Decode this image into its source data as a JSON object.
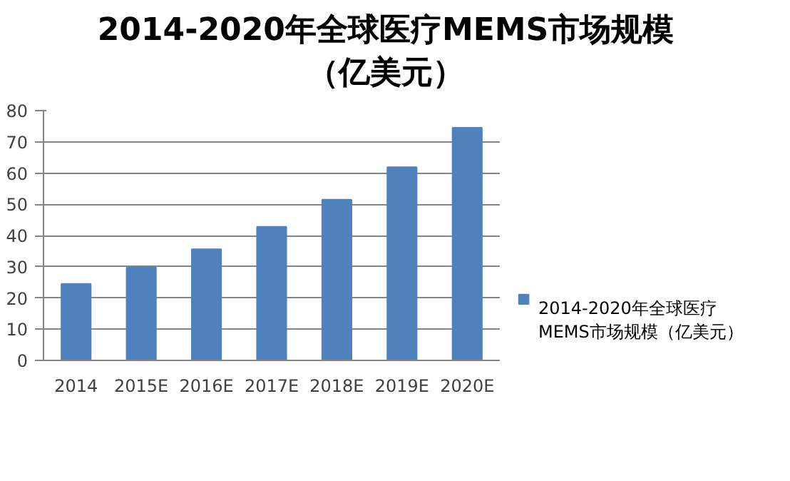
{
  "chart_data": {
    "type": "bar",
    "title": "2014-2020年全球医疗MEMS市场规模（亿美元）",
    "categories": [
      "2014",
      "2015E",
      "2016E",
      "2017E",
      "2018E",
      "2019E",
      "2020E"
    ],
    "series": [
      {
        "name": "2014-2020年全球医疗MEMS市场规模（亿美元）",
        "color": "#4f81bd",
        "values": [
          24.5,
          29.8,
          35.6,
          42.8,
          51.5,
          61.9,
          74.5
        ]
      }
    ],
    "ylim": [
      0,
      80
    ],
    "yticks": [
      0,
      10,
      20,
      30,
      40,
      50,
      60,
      70,
      80
    ],
    "grid": "y",
    "legend": "right"
  }
}
